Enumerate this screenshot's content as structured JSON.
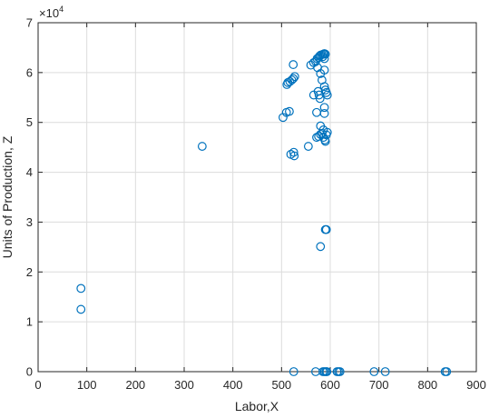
{
  "chart_data": {
    "type": "scatter",
    "title": "",
    "xlabel": "Labor,X",
    "ylabel": "Units of Production, Z",
    "xlim": [
      0,
      900
    ],
    "ylim": [
      0,
      7
    ],
    "y_exponent_label": "×10",
    "y_exponent_power": "4",
    "xticks": [
      "0",
      "100",
      "200",
      "300",
      "400",
      "500",
      "600",
      "700",
      "800",
      "900"
    ],
    "yticks": [
      "0",
      "1",
      "2",
      "3",
      "4",
      "5",
      "6",
      "7"
    ],
    "grid": true,
    "marker": "open-circle",
    "marker_color": "#0072BD",
    "points": [
      {
        "x": 88,
        "y": 1.67
      },
      {
        "x": 88,
        "y": 1.25
      },
      {
        "x": 337,
        "y": 4.52
      },
      {
        "x": 503,
        "y": 5.1
      },
      {
        "x": 510,
        "y": 5.2
      },
      {
        "x": 516,
        "y": 5.22
      },
      {
        "x": 511,
        "y": 5.76
      },
      {
        "x": 513,
        "y": 5.8
      },
      {
        "x": 517,
        "y": 5.82
      },
      {
        "x": 521,
        "y": 5.85
      },
      {
        "x": 524,
        "y": 5.88
      },
      {
        "x": 527,
        "y": 5.92
      },
      {
        "x": 524,
        "y": 6.16
      },
      {
        "x": 519,
        "y": 4.36
      },
      {
        "x": 525,
        "y": 4.4
      },
      {
        "x": 526,
        "y": 4.33
      },
      {
        "x": 555,
        "y": 4.52
      },
      {
        "x": 566,
        "y": 5.55
      },
      {
        "x": 560,
        "y": 6.15
      },
      {
        "x": 566,
        "y": 6.2
      },
      {
        "x": 570,
        "y": 6.22
      },
      {
        "x": 573,
        "y": 6.28
      },
      {
        "x": 576,
        "y": 6.3
      },
      {
        "x": 578,
        "y": 6.33
      },
      {
        "x": 580,
        "y": 6.35
      },
      {
        "x": 583,
        "y": 6.36
      },
      {
        "x": 586,
        "y": 6.37
      },
      {
        "x": 588,
        "y": 6.38
      },
      {
        "x": 590,
        "y": 6.37
      },
      {
        "x": 585,
        "y": 6.32
      },
      {
        "x": 588,
        "y": 6.28
      },
      {
        "x": 574,
        "y": 6.1
      },
      {
        "x": 580,
        "y": 5.98
      },
      {
        "x": 583,
        "y": 5.85
      },
      {
        "x": 588,
        "y": 5.72
      },
      {
        "x": 590,
        "y": 5.65
      },
      {
        "x": 592,
        "y": 5.6
      },
      {
        "x": 594,
        "y": 5.55
      },
      {
        "x": 575,
        "y": 5.62
      },
      {
        "x": 577,
        "y": 5.55
      },
      {
        "x": 579,
        "y": 5.48
      },
      {
        "x": 588,
        "y": 6.05
      },
      {
        "x": 572,
        "y": 5.2
      },
      {
        "x": 588,
        "y": 5.3
      },
      {
        "x": 588,
        "y": 5.18
      },
      {
        "x": 580,
        "y": 4.93
      },
      {
        "x": 586,
        "y": 4.85
      },
      {
        "x": 572,
        "y": 4.7
      },
      {
        "x": 576,
        "y": 4.72
      },
      {
        "x": 580,
        "y": 4.76
      },
      {
        "x": 583,
        "y": 4.78
      },
      {
        "x": 586,
        "y": 4.7
      },
      {
        "x": 589,
        "y": 4.65
      },
      {
        "x": 592,
        "y": 4.75
      },
      {
        "x": 594,
        "y": 4.8
      },
      {
        "x": 590,
        "y": 4.62
      },
      {
        "x": 590,
        "y": 2.85
      },
      {
        "x": 592,
        "y": 2.85
      },
      {
        "x": 580,
        "y": 2.51
      },
      {
        "x": 525,
        "y": 0
      },
      {
        "x": 570,
        "y": 0
      },
      {
        "x": 585,
        "y": 0
      },
      {
        "x": 588,
        "y": 0
      },
      {
        "x": 591,
        "y": 0
      },
      {
        "x": 593,
        "y": 0
      },
      {
        "x": 614,
        "y": 0
      },
      {
        "x": 617,
        "y": 0
      },
      {
        "x": 620,
        "y": 0
      },
      {
        "x": 690,
        "y": 0
      },
      {
        "x": 713,
        "y": 0
      },
      {
        "x": 836,
        "y": 0
      },
      {
        "x": 839,
        "y": 0
      }
    ]
  }
}
